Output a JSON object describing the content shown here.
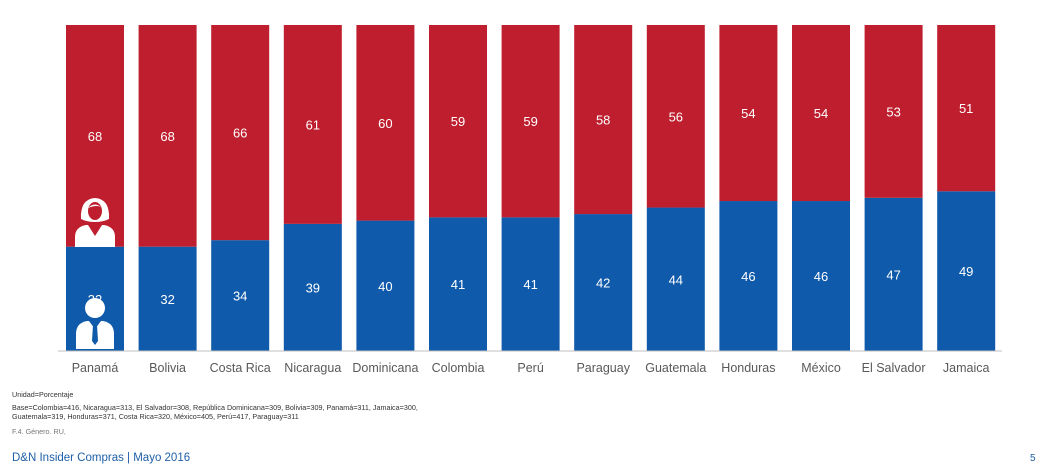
{
  "chart_data": {
    "type": "bar",
    "stacked": true,
    "percent": true,
    "categories": [
      "Panamá",
      "Bolivia",
      "Costa Rica",
      "Nicaragua",
      "Dominicana",
      "Colombia",
      "Perú",
      "Paraguay",
      "Guatemala",
      "Honduras",
      "México",
      "El Salvador",
      "Jamaica"
    ],
    "series": [
      {
        "icon": "male-figure-icon",
        "color": "#0f5aaa",
        "values": [
          32,
          32,
          34,
          39,
          40,
          41,
          41,
          42,
          44,
          46,
          46,
          47,
          49
        ]
      },
      {
        "icon": "female-figure-icon",
        "color": "#be1e2d",
        "values": [
          68,
          68,
          66,
          61,
          60,
          59,
          59,
          58,
          56,
          54,
          54,
          53,
          51
        ]
      }
    ],
    "ylim": [
      0,
      100
    ],
    "grid": false,
    "legend": "icons on first bar"
  },
  "notes": {
    "unit": "Unidad=Porcentaje",
    "base_line1": "Base=Colombia=416, Nicaragua=313, El Salvador=308, República Dominicana=309, Bolivia=309, Panamá=311, Jamaica=300,",
    "base_line2": "Guatemala=319, Honduras=371, Costa Rica=320, México=405, Perú=417, Paraguay=311",
    "source": "F.4. Género. RU,"
  },
  "footer": {
    "title": "D&N Insider Compras  | Mayo 2016",
    "page": "5"
  }
}
